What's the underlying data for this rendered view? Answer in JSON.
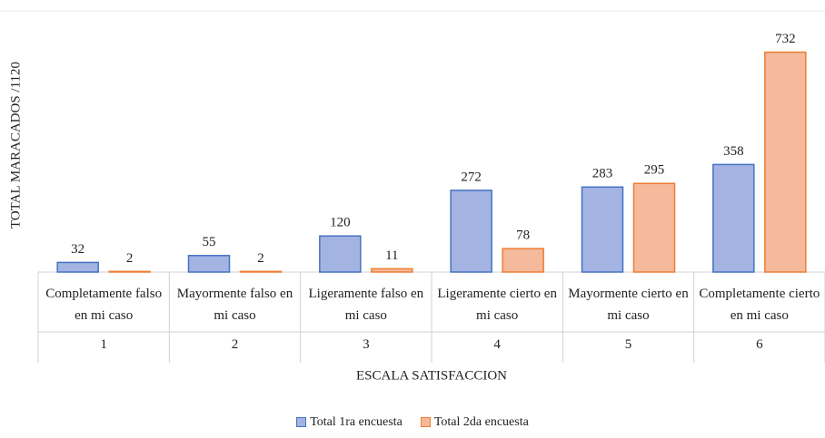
{
  "chart_data": {
    "type": "bar",
    "y_axis_label": "TOTAL MARACADOS /1120",
    "x_axis_label": "ESCALA SATISFACCION",
    "categories": [
      "Completamente falso en mi caso",
      "Mayormente falso en mi caso",
      "Ligeramente falso en mi caso",
      "Ligeramente cierto en mi caso",
      "Mayormente cierto en mi caso",
      "Completamente cierto en mi caso"
    ],
    "category_codes": [
      "1",
      "2",
      "3",
      "4",
      "5",
      "6"
    ],
    "series": [
      {
        "name": "Total 1ra encuesta",
        "color": "#4472c4",
        "fill": "#a3b4e2",
        "values": [
          32,
          55,
          120,
          272,
          283,
          358
        ]
      },
      {
        "name": "Total 2da encuesta",
        "color": "#ed7d31",
        "fill": "#f5b99c",
        "values": [
          2,
          2,
          11,
          78,
          295,
          732
        ]
      }
    ],
    "ylim": [
      0,
      800
    ]
  }
}
